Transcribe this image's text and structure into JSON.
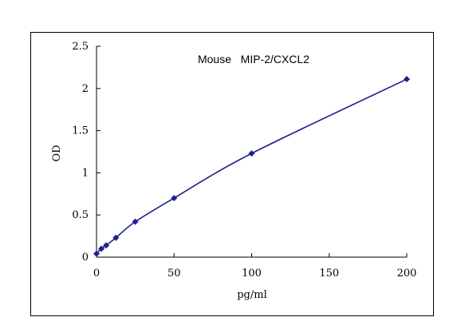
{
  "chart_data": {
    "type": "line",
    "title": "Mouse   MIP-2/CXCL2",
    "xlabel": "pg/ml",
    "ylabel": "OD",
    "xlim": [
      0,
      200
    ],
    "ylim": [
      0,
      2.5
    ],
    "xticks": [
      "0",
      "50",
      "100",
      "150",
      "200"
    ],
    "xtick_values": [
      0,
      50,
      100,
      150,
      200
    ],
    "yticks": [
      "0",
      "0.5",
      "1",
      "1.5",
      "2",
      "2.5"
    ],
    "ytick_values": [
      0,
      0.5,
      1,
      1.5,
      2,
      2.5
    ],
    "grid": false,
    "legend": "none",
    "marker": "diamond",
    "series": [
      {
        "x": [
          0,
          3.125,
          6.25,
          12.5,
          25,
          50,
          100,
          200
        ],
        "y": [
          0.04,
          0.1,
          0.14,
          0.23,
          0.42,
          0.7,
          1.23,
          2.11
        ]
      }
    ],
    "colors": {
      "line": "#1f1f8f",
      "marker": "#1f1f8f",
      "axis": "#000000"
    }
  }
}
